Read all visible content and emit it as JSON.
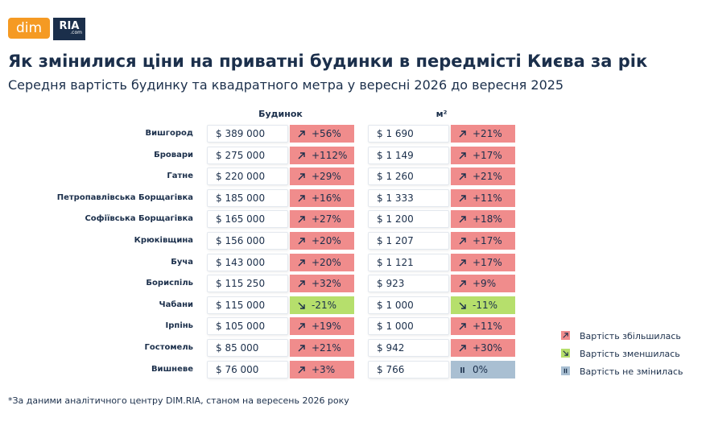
{
  "header": {
    "logo_left": "dim",
    "logo_right": "RIA",
    "logo_sub": ".com",
    "title": "Як змінилися ціни на приватні будинки в передмісті Києва за рік",
    "subtitle": "Середня вартість будинку та квадратного метра у вересні 2026 до вересня 2025"
  },
  "table": {
    "columns": [
      "Будинок",
      "м²"
    ],
    "rows": [
      [
        "Вишгород",
        "$ 389 000",
        "+56%",
        "$ 1 690",
        "+21%"
      ],
      [
        "Бровари",
        "$ 275 000",
        "+112%",
        "$ 1 149",
        "+17%"
      ],
      [
        "Гатне",
        "$ 220 000",
        "+29%",
        "$ 1 260",
        "+21%"
      ],
      [
        "Петропавлівська Борщагівка",
        "$ 185 000",
        "+16%",
        "$ 1 333",
        "+11%"
      ],
      [
        "Софіївська Борщагівка",
        "$ 165 000",
        "+27%",
        "$ 1 200",
        "+18%"
      ],
      [
        "Крюківщина",
        "$ 156 000",
        "+20%",
        "$ 1 207",
        "+17%"
      ],
      [
        "Буча",
        "$ 143 000",
        "+20%",
        "$ 1 121",
        "+17%"
      ],
      [
        "Бориспіль",
        "$ 115 250",
        "+32%",
        "$ 923",
        "+9%"
      ],
      [
        "Чабани",
        "$ 115 000",
        "-21%",
        "$ 1 000",
        "-11%"
      ],
      [
        "Ірпінь",
        "$ 105 000",
        "+19%",
        "$ 1 000",
        "+11%"
      ],
      [
        "Гостомель",
        "$ 85 000",
        "+21%",
        "$ 942",
        "+30%"
      ],
      [
        "Вишневе",
        "$ 76 000",
        "+3%",
        "$ 766",
        "0%"
      ]
    ]
  },
  "legend": {
    "items": [
      {
        "label": "Вартість збільшилась",
        "color": "#f08c8c"
      },
      {
        "label": "Вартість зменшилась",
        "color": "#b6df6c"
      },
      {
        "label": "Вартість не змінилась",
        "color": "#a9bfd2"
      }
    ]
  },
  "footnote": "*За даними аналітичного центру DIM.RIA, станом на вересень 2026 року"
}
